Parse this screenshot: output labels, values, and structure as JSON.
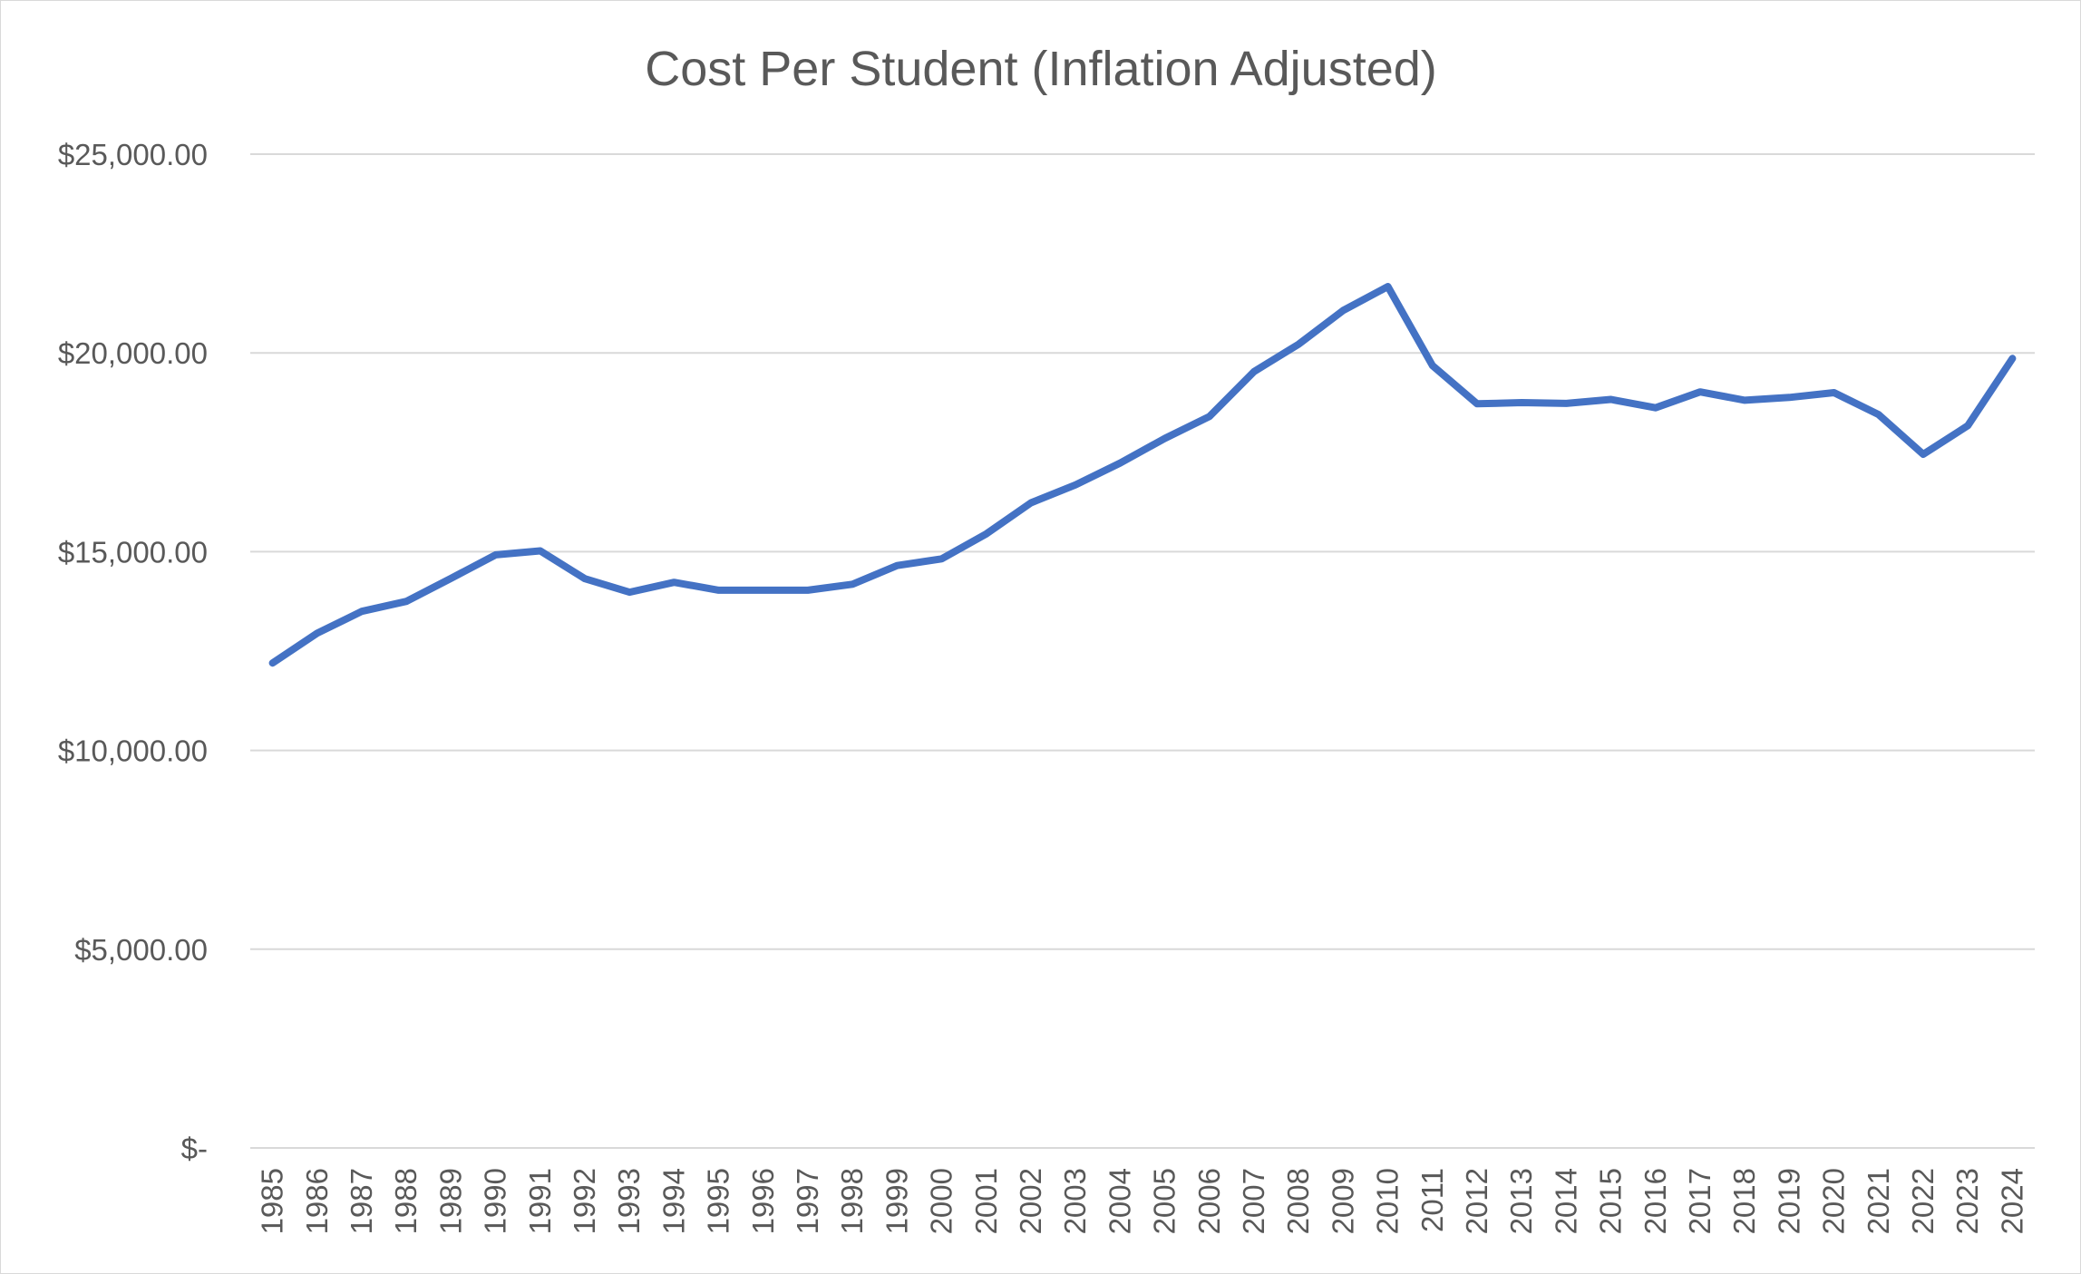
{
  "chart_data": {
    "type": "line",
    "title": "Cost Per Student (Inflation Adjusted)",
    "xlabel": "",
    "ylabel": "",
    "ylim": [
      0,
      25000
    ],
    "y_ticks": [
      0,
      5000,
      10000,
      15000,
      20000,
      25000
    ],
    "y_tick_labels": [
      "$-",
      "$5,000.00",
      "$10,000.00",
      "$15,000.00",
      "$20,000.00",
      "$25,000.00"
    ],
    "grid": true,
    "legend": "none",
    "categories": [
      "1985",
      "1986",
      "1987",
      "1988",
      "1989",
      "1990",
      "1991",
      "1992",
      "1993",
      "1994",
      "1995",
      "1996",
      "1997",
      "1998",
      "1999",
      "2000",
      "2001",
      "2002",
      "2003",
      "2004",
      "2005",
      "2006",
      "2007",
      "2008",
      "2009",
      "2010",
      "2011",
      "2012",
      "2013",
      "2014",
      "2015",
      "2016",
      "2017",
      "2018",
      "2019",
      "2020",
      "2021",
      "2022",
      "2023",
      "2024"
    ],
    "series": [
      {
        "color": "#4472c4",
        "values": [
          12200,
          12950,
          13500,
          13750,
          14330,
          14920,
          15020,
          14320,
          13980,
          14230,
          14030,
          14030,
          14030,
          14180,
          14650,
          14820,
          15450,
          16230,
          16680,
          17230,
          17850,
          18400,
          19530,
          20220,
          21070,
          21670,
          19680,
          18720,
          18750,
          18730,
          18830,
          18620,
          19020,
          18810,
          18880,
          19000,
          18450,
          17450,
          18170,
          19860
        ]
      }
    ]
  }
}
